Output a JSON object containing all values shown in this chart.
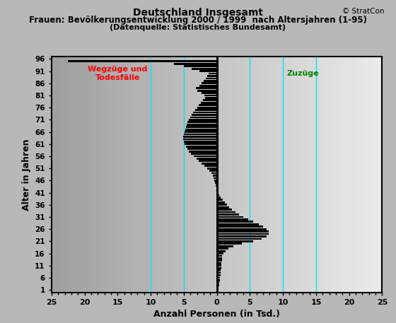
{
  "title_main": "Deutschland Insgesamt",
  "title_sub": "Frauen: Bevölkerungsentwicklung 2000 / 1999  nach Altersjahren (1-95)",
  "title_sub2": "(Datenquelle: Statistisches Bundesamt)",
  "copyright": "© StratCon",
  "xlabel": "Anzahl Personen (in Tsd.)",
  "ylabel": "Alter in Jahren",
  "label_wegzuge": "Wegzüge und\nTodesfälle",
  "label_zuzuge": "Zuzüge",
  "xlim": [
    -25,
    25
  ],
  "xticks": [
    -25,
    -20,
    -15,
    -10,
    -5,
    0,
    5,
    10,
    15,
    20,
    25
  ],
  "xticklabels": [
    "25",
    "20",
    "15",
    "10",
    "5",
    "0",
    "5",
    "10",
    "15",
    "20",
    "25"
  ],
  "ylim": [
    0,
    97
  ],
  "yticks": [
    1,
    6,
    11,
    16,
    21,
    26,
    31,
    36,
    41,
    46,
    51,
    56,
    61,
    66,
    71,
    76,
    81,
    86,
    91,
    96
  ],
  "bg_color": "#b8b8b8",
  "bar_color": "#000000",
  "vline_color": "#00e5ff",
  "vline_positions": [
    -10,
    -5,
    5,
    10,
    15
  ],
  "ages": [
    1,
    2,
    3,
    4,
    5,
    6,
    7,
    8,
    9,
    10,
    11,
    12,
    13,
    14,
    15,
    16,
    17,
    18,
    19,
    20,
    21,
    22,
    23,
    24,
    25,
    26,
    27,
    28,
    29,
    30,
    31,
    32,
    33,
    34,
    35,
    36,
    37,
    38,
    39,
    40,
    41,
    42,
    43,
    44,
    45,
    46,
    47,
    48,
    49,
    50,
    51,
    52,
    53,
    54,
    55,
    56,
    57,
    58,
    59,
    60,
    61,
    62,
    63,
    64,
    65,
    66,
    67,
    68,
    69,
    70,
    71,
    72,
    73,
    74,
    75,
    76,
    77,
    78,
    79,
    80,
    81,
    82,
    83,
    84,
    85,
    86,
    87,
    88,
    89,
    90,
    91,
    92,
    93,
    94,
    95
  ],
  "values": [
    0.2,
    0.3,
    0.35,
    0.4,
    0.45,
    0.5,
    0.55,
    0.55,
    0.6,
    0.65,
    0.7,
    0.7,
    0.75,
    0.75,
    0.8,
    1.0,
    1.3,
    1.8,
    2.5,
    3.8,
    5.5,
    6.8,
    7.5,
    7.8,
    7.8,
    7.5,
    7.0,
    6.3,
    5.5,
    4.7,
    4.0,
    3.4,
    2.8,
    2.3,
    1.9,
    1.5,
    1.2,
    0.9,
    0.6,
    0.4,
    0.15,
    0.0,
    -0.1,
    -0.2,
    -0.3,
    -0.4,
    -0.5,
    -0.6,
    -0.8,
    -1.1,
    -1.5,
    -1.9,
    -2.3,
    -2.7,
    -3.1,
    -3.5,
    -3.9,
    -4.2,
    -4.5,
    -4.7,
    -4.9,
    -5.0,
    -5.1,
    -5.1,
    -5.0,
    -4.9,
    -4.8,
    -4.7,
    -4.6,
    -4.4,
    -4.2,
    -4.0,
    -3.8,
    -3.6,
    -3.3,
    -3.0,
    -2.7,
    -2.4,
    -2.1,
    -1.8,
    -1.9,
    -2.3,
    -3.0,
    -3.2,
    -2.6,
    -2.3,
    -2.0,
    -1.7,
    -1.5,
    -1.2,
    -2.6,
    -3.8,
    -5.0,
    -6.5,
    -22.5
  ]
}
